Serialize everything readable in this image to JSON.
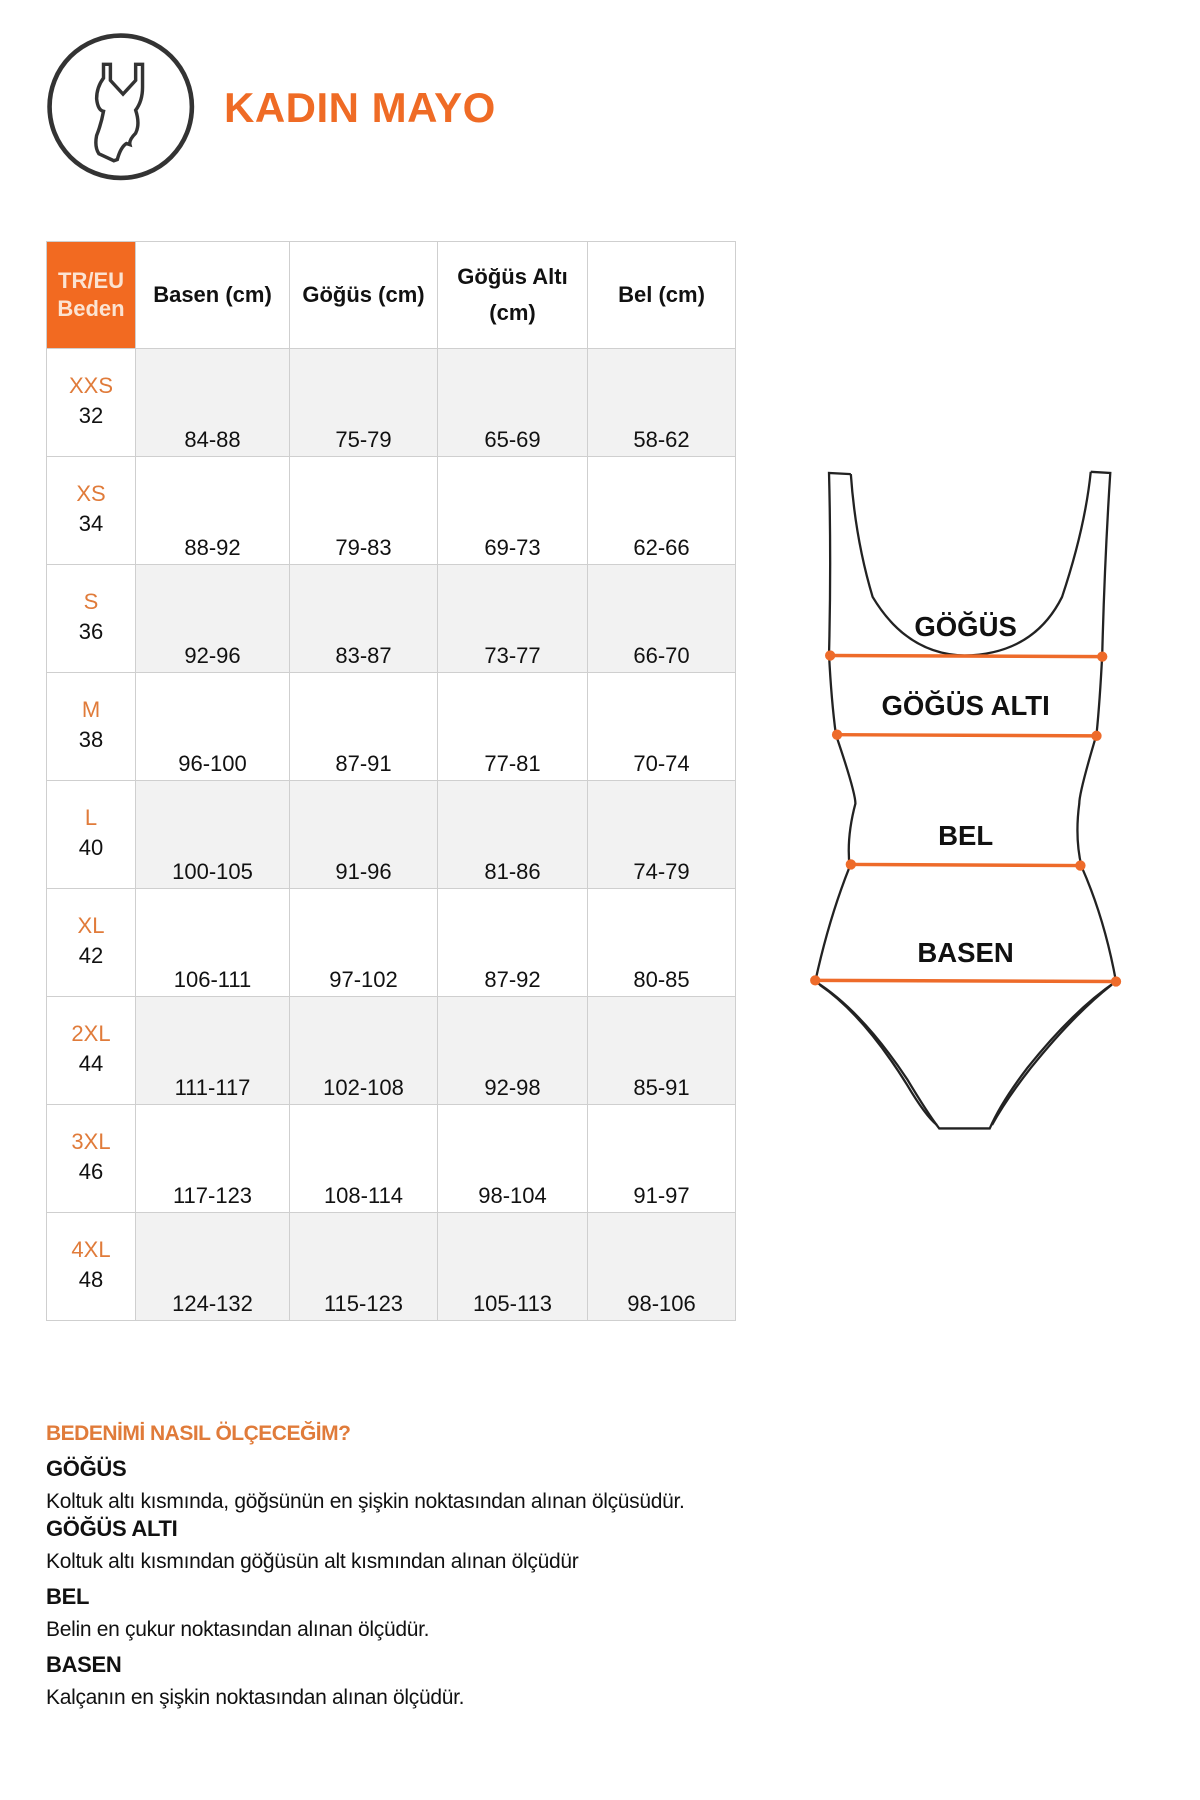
{
  "header": {
    "title": "KADIN MAYO",
    "icon": "swimsuit-icon"
  },
  "colors": {
    "accent": "#ef6b25",
    "row_shade": "#f2f2f2"
  },
  "table": {
    "columns": [
      "TR/EU Beden",
      "Basen (cm)",
      "Göğüs (cm)",
      "Göğüs Altı (cm)",
      "Bel (cm)"
    ],
    "size_header": [
      "TR/EU",
      "Beden"
    ],
    "sub_header": [
      "Göğüs Altı",
      "(cm)"
    ],
    "rows": [
      {
        "label": "XXS",
        "size": "32",
        "basen": "84-88",
        "gogus": "75-79",
        "gogus_alti": "65-69",
        "bel": "58-62"
      },
      {
        "label": "XS",
        "size": "34",
        "basen": "88-92",
        "gogus": "79-83",
        "gogus_alti": "69-73",
        "bel": "62-66"
      },
      {
        "label": "S",
        "size": "36",
        "basen": "92-96",
        "gogus": "83-87",
        "gogus_alti": "73-77",
        "bel": "66-70"
      },
      {
        "label": "M",
        "size": "38",
        "basen": "96-100",
        "gogus": "87-91",
        "gogus_alti": "77-81",
        "bel": "70-74"
      },
      {
        "label": "L",
        "size": "40",
        "basen": "100-105",
        "gogus": "91-96",
        "gogus_alti": "81-86",
        "bel": "74-79"
      },
      {
        "label": "XL",
        "size": "42",
        "basen": "106-111",
        "gogus": "97-102",
        "gogus_alti": "87-92",
        "bel": "80-85"
      },
      {
        "label": "2XL",
        "size": "44",
        "basen": "111-117",
        "gogus": "102-108",
        "gogus_alti": "92-98",
        "bel": "85-91"
      },
      {
        "label": "3XL",
        "size": "46",
        "basen": "117-123",
        "gogus": "108-114",
        "gogus_alti": "98-104",
        "bel": "91-97"
      },
      {
        "label": "4XL",
        "size": "48",
        "basen": "124-132",
        "gogus": "115-123",
        "gogus_alti": "105-113",
        "bel": "98-106"
      }
    ]
  },
  "diagram": {
    "labels": [
      "GÖĞÜS",
      "GÖĞÜS ALTI",
      "BEL",
      "BASEN"
    ]
  },
  "guide": {
    "heading": "BEDENİMİ NASIL ÖLÇECEĞİM?",
    "items": [
      {
        "title": "GÖĞÜS",
        "text": "Koltuk altı kısmında, göğsünün en şişkin noktasından alınan ölçüsüdür."
      },
      {
        "title": "GÖĞÜS ALTI",
        "text": "Koltuk altı kısmından göğüsün alt kısmından alınan ölçüdür"
      },
      {
        "title": "BEL",
        "text": "Belin en çukur noktasından alınan ölçüdür."
      },
      {
        "title": "BASEN",
        "text": "Kalçanın en şişkin noktasından alınan ölçüdür."
      }
    ]
  }
}
